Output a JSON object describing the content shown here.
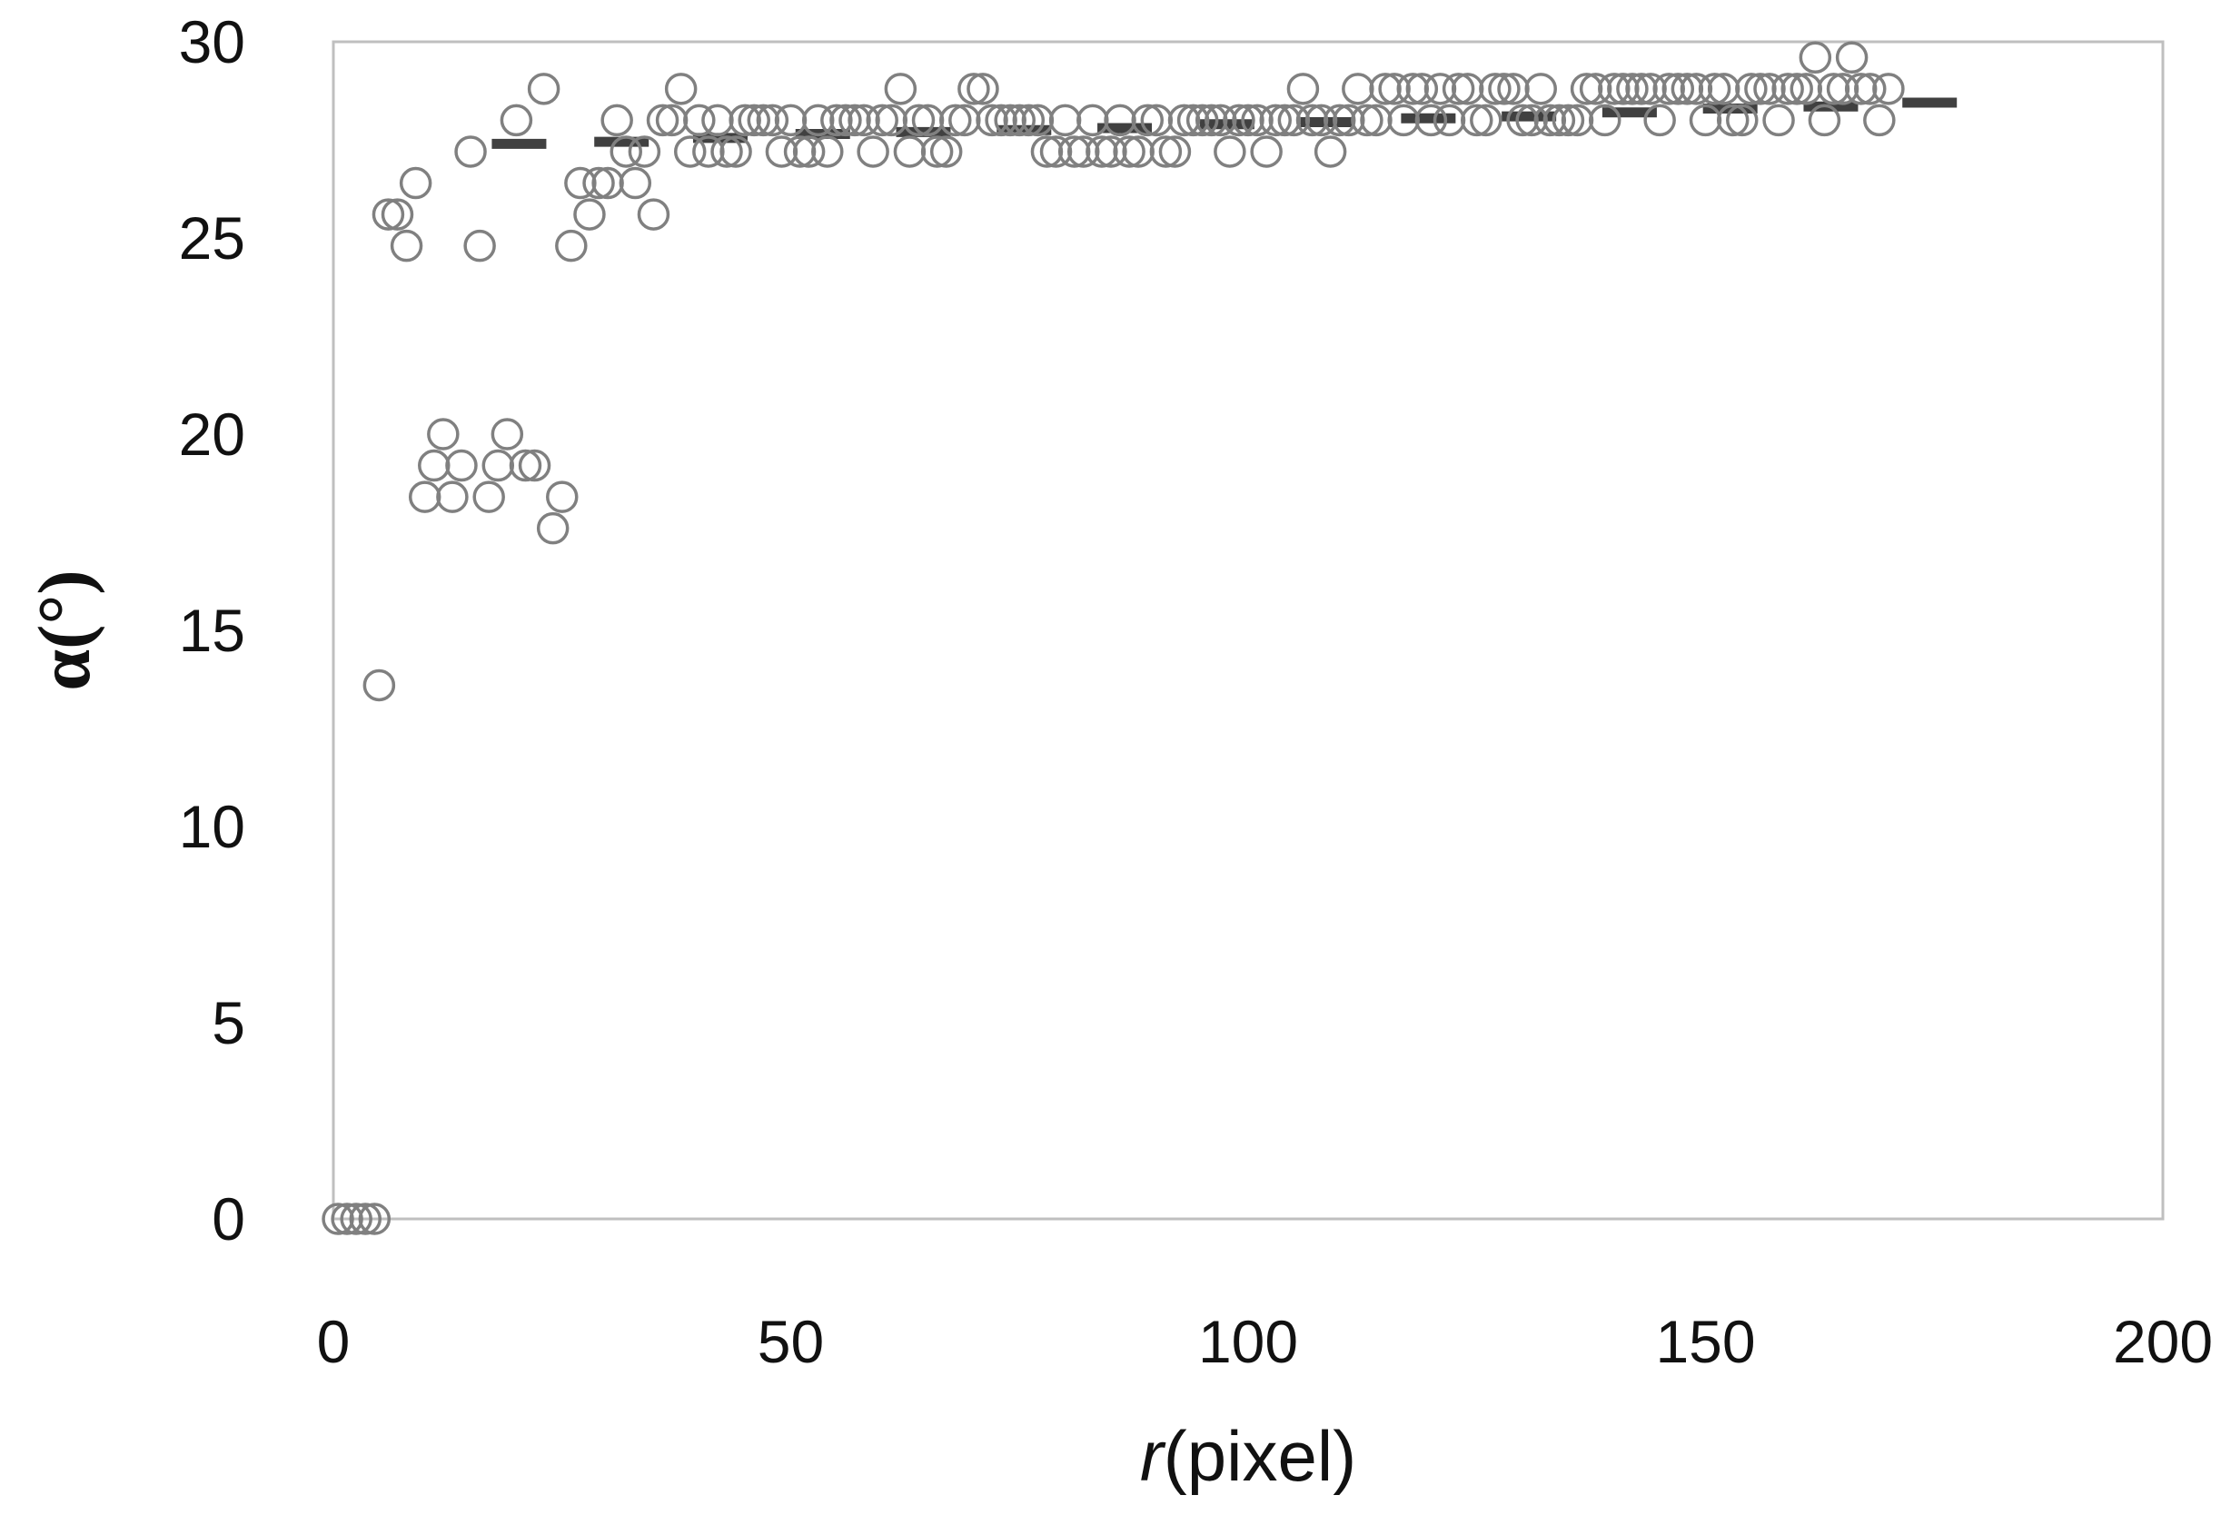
{
  "chart_data": {
    "type": "scatter",
    "title": "",
    "xlabel": {
      "italic": "r",
      "rest": "(pixel)"
    },
    "ylabel": "α(°)",
    "xlim": [
      0,
      200
    ],
    "ylim": [
      0,
      30
    ],
    "xticks": [
      "0",
      "50",
      "100",
      "150",
      "200"
    ],
    "yticks": [
      "0",
      "5",
      "10",
      "15",
      "20",
      "25",
      "30"
    ],
    "grid": false,
    "legend": "none",
    "colors": {
      "marker": "#808080",
      "trend": "#404040",
      "frame": "#bfbfbf"
    },
    "series": [
      {
        "marker": "open-circle",
        "points": [
          [
            0.5,
            0
          ],
          [
            1.5,
            0
          ],
          [
            2.5,
            0
          ],
          [
            3.5,
            0
          ],
          [
            4.5,
            0
          ],
          [
            5,
            13.6
          ],
          [
            6,
            25.6
          ],
          [
            7,
            25.6
          ],
          [
            8,
            24.8
          ],
          [
            9,
            26.4
          ],
          [
            10,
            18.4
          ],
          [
            11,
            19.2
          ],
          [
            12,
            20
          ],
          [
            13,
            18.4
          ],
          [
            14,
            19.2
          ],
          [
            15,
            27.2
          ],
          [
            16,
            24.8
          ],
          [
            17,
            18.4
          ],
          [
            18,
            19.2
          ],
          [
            19,
            20
          ],
          [
            20,
            28
          ],
          [
            21,
            19.2
          ],
          [
            22,
            19.2
          ],
          [
            23,
            28.8
          ],
          [
            24,
            17.6
          ],
          [
            25,
            18.4
          ],
          [
            26,
            24.8
          ],
          [
            27,
            26.4
          ],
          [
            28,
            25.6
          ],
          [
            29,
            26.4
          ],
          [
            30,
            26.4
          ],
          [
            31,
            28
          ],
          [
            32,
            27.2
          ],
          [
            33,
            26.4
          ],
          [
            34,
            27.2
          ],
          [
            35,
            25.6
          ],
          [
            36,
            28
          ],
          [
            37,
            28
          ],
          [
            38,
            28.8
          ],
          [
            39,
            27.2
          ],
          [
            40,
            28
          ],
          [
            41,
            27.2
          ],
          [
            42,
            28
          ],
          [
            43,
            27.2
          ],
          [
            44,
            27.2
          ],
          [
            45,
            28
          ],
          [
            46,
            28
          ],
          [
            47,
            28
          ],
          [
            48,
            28
          ],
          [
            49,
            27.2
          ],
          [
            50,
            28
          ],
          [
            51,
            27.2
          ],
          [
            52,
            27.2
          ],
          [
            53,
            28
          ],
          [
            54,
            27.2
          ],
          [
            55,
            28
          ],
          [
            56,
            28
          ],
          [
            57,
            28
          ],
          [
            58,
            28
          ],
          [
            59,
            27.2
          ],
          [
            60,
            28
          ],
          [
            61,
            28
          ],
          [
            62,
            28.8
          ],
          [
            63,
            27.2
          ],
          [
            64,
            28
          ],
          [
            65,
            28
          ],
          [
            66,
            27.2
          ],
          [
            67,
            27.2
          ],
          [
            68,
            28
          ],
          [
            69,
            28
          ],
          [
            70,
            28.8
          ],
          [
            71,
            28.8
          ],
          [
            72,
            28
          ],
          [
            73,
            28
          ],
          [
            74,
            28
          ],
          [
            75,
            28
          ],
          [
            76,
            28
          ],
          [
            77,
            28
          ],
          [
            78,
            27.2
          ],
          [
            79,
            27.2
          ],
          [
            80,
            28
          ],
          [
            81,
            27.2
          ],
          [
            82,
            27.2
          ],
          [
            83,
            28
          ],
          [
            84,
            27.2
          ],
          [
            85,
            27.2
          ],
          [
            86,
            28
          ],
          [
            87,
            27.2
          ],
          [
            88,
            27.2
          ],
          [
            89,
            28
          ],
          [
            90,
            28
          ],
          [
            91,
            27.2
          ],
          [
            92,
            27.2
          ],
          [
            93,
            28
          ],
          [
            94,
            28
          ],
          [
            95,
            28
          ],
          [
            96,
            28
          ],
          [
            97,
            28
          ],
          [
            98,
            27.2
          ],
          [
            99,
            28
          ],
          [
            100,
            28
          ],
          [
            101,
            28
          ],
          [
            102,
            27.2
          ],
          [
            103,
            28
          ],
          [
            104,
            28
          ],
          [
            105,
            28
          ],
          [
            106,
            28.8
          ],
          [
            107,
            28
          ],
          [
            108,
            28
          ],
          [
            109,
            27.2
          ],
          [
            110,
            28
          ],
          [
            111,
            28
          ],
          [
            112,
            28.8
          ],
          [
            113,
            28
          ],
          [
            114,
            28
          ],
          [
            115,
            28.8
          ],
          [
            116,
            28.8
          ],
          [
            117,
            28
          ],
          [
            118,
            28.8
          ],
          [
            119,
            28.8
          ],
          [
            120,
            28
          ],
          [
            121,
            28.8
          ],
          [
            122,
            28
          ],
          [
            123,
            28.8
          ],
          [
            124,
            28.8
          ],
          [
            125,
            28
          ],
          [
            126,
            28
          ],
          [
            127,
            28.8
          ],
          [
            128,
            28.8
          ],
          [
            129,
            28.8
          ],
          [
            130,
            28
          ],
          [
            131,
            28
          ],
          [
            132,
            28.8
          ],
          [
            133,
            28
          ],
          [
            134,
            28
          ],
          [
            135,
            28
          ],
          [
            136,
            28
          ],
          [
            137,
            28.8
          ],
          [
            138,
            28.8
          ],
          [
            139,
            28
          ],
          [
            140,
            28.8
          ],
          [
            141,
            28.8
          ],
          [
            142,
            28.8
          ],
          [
            143,
            28.8
          ],
          [
            144,
            28.8
          ],
          [
            145,
            28
          ],
          [
            146,
            28.8
          ],
          [
            147,
            28.8
          ],
          [
            148,
            28.8
          ],
          [
            149,
            28.8
          ],
          [
            150,
            28
          ],
          [
            151,
            28.8
          ],
          [
            152,
            28.8
          ],
          [
            153,
            28
          ],
          [
            154,
            28
          ],
          [
            155,
            28.8
          ],
          [
            156,
            28.8
          ],
          [
            157,
            28.8
          ],
          [
            158,
            28
          ],
          [
            159,
            28.8
          ],
          [
            160,
            28.8
          ],
          [
            161,
            28.8
          ],
          [
            162,
            29.6
          ],
          [
            163,
            28
          ],
          [
            164,
            28.8
          ],
          [
            165,
            28.8
          ],
          [
            166,
            29.6
          ],
          [
            167,
            28.8
          ],
          [
            168,
            28.8
          ],
          [
            169,
            28
          ],
          [
            170,
            28.8
          ]
        ]
      },
      {
        "marker": "dash",
        "points": [
          [
            20.3,
            27.4
          ],
          [
            31.5,
            27.45
          ],
          [
            42.3,
            27.55
          ],
          [
            53.5,
            27.65
          ],
          [
            64.5,
            27.7
          ],
          [
            75.5,
            27.75
          ],
          [
            86.5,
            27.8
          ],
          [
            97.7,
            27.9
          ],
          [
            108.7,
            27.95
          ],
          [
            119.7,
            28.05
          ],
          [
            130.7,
            28.1
          ],
          [
            141.7,
            28.2
          ],
          [
            152.7,
            28.3
          ],
          [
            163.7,
            28.35
          ],
          [
            174.5,
            28.45
          ]
        ]
      }
    ]
  }
}
